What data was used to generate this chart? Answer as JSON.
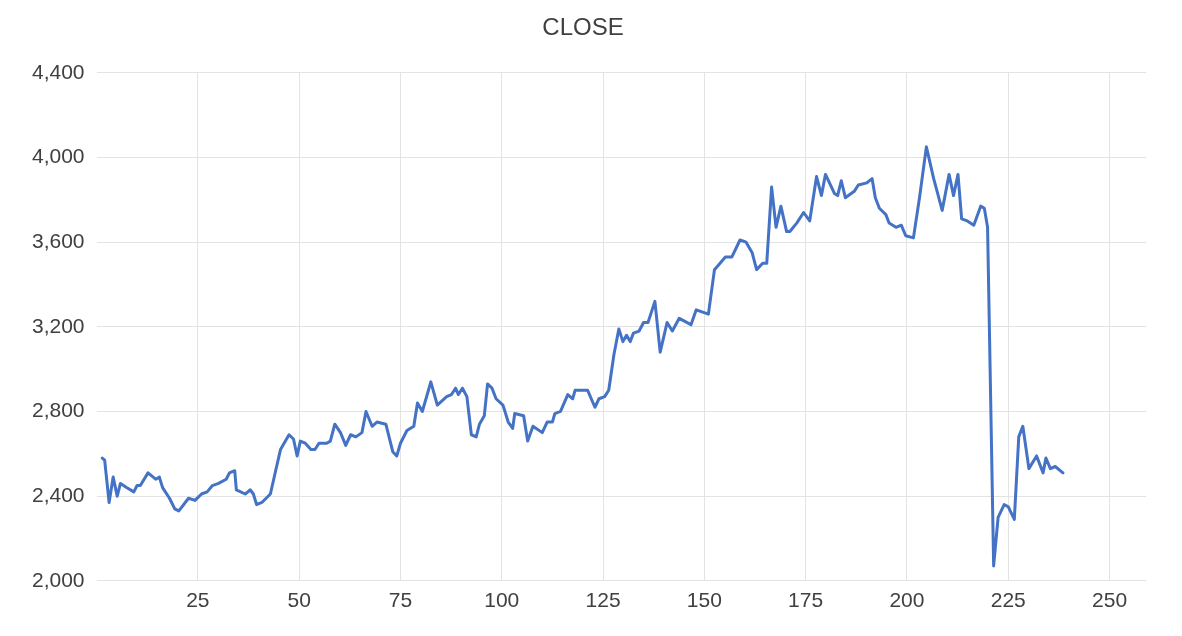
{
  "chart_data": {
    "type": "line",
    "title": "CLOSE",
    "series": [
      {
        "color": "#4472c4",
        "x": [
          1.4,
          2,
          3.1,
          4.1,
          5.1,
          5.9,
          7.5,
          9.2,
          10,
          10.8,
          12.7,
          14.6,
          15.5,
          16.3,
          18,
          19.3,
          20.3,
          22.7,
          24.3,
          25.9,
          27.3,
          28.6,
          30.1,
          32,
          32.8,
          34.1,
          34.5,
          36.7,
          37.9,
          38.7,
          39.5,
          40.8,
          42.9,
          44.2,
          45.4,
          47.5,
          48.6,
          49.5,
          50.3,
          51.5,
          52.9,
          53.9,
          54.9,
          56.8,
          57.7,
          58.8,
          60.2,
          61.5,
          62.7,
          64,
          65.5,
          66.5,
          68,
          69.2,
          71.4,
          73.1,
          74.1,
          75,
          76.6,
          78.3,
          79.2,
          80.4,
          82.5,
          84.1,
          86.4,
          87.6,
          88.6,
          89.3,
          90.3,
          91.4,
          92.5,
          93.7,
          94.5,
          95.7,
          96.5,
          97.6,
          98.6,
          100.3,
          101.6,
          102.7,
          103.2,
          105.4,
          106.4,
          107.7,
          110,
          111.2,
          112.5,
          113.1,
          114.5,
          116.3,
          117.5,
          118.1,
          121.2,
          123,
          124,
          125.4,
          126.4,
          127.7,
          128.9,
          129.9,
          130.8,
          131.7,
          132.5,
          133.9,
          135,
          136.1,
          137.8,
          139.1,
          140.8,
          142.1,
          143.8,
          146.7,
          148,
          151,
          152.5,
          153.4,
          155.2,
          156.8,
          158.8,
          160.3,
          161.8,
          162.9,
          164.4,
          165.4,
          166.6,
          167.7,
          168.9,
          170.3,
          171.1,
          172.8,
          174.5,
          176,
          177.7,
          178.9,
          179.9,
          182.1,
          182.9,
          183.8,
          184.8,
          187,
          188,
          190.1,
          191.4,
          192.2,
          193.2,
          194.8,
          195.6,
          197.3,
          198.6,
          199.7,
          201.6,
          203.1,
          204.8,
          206.6,
          208.7,
          210.4,
          211.5,
          212.6,
          213.5,
          214.9,
          216.5,
          218.2,
          219.1,
          219.9,
          221.4,
          222.5,
          224,
          225,
          226.5,
          227.6,
          228.6,
          230.1,
          232,
          233.6,
          234.3,
          235.4,
          236.6,
          238.5
        ],
        "values": [
          2580,
          2570,
          2370,
          2490,
          2400,
          2460,
          2440,
          2420,
          2450,
          2450,
          2510,
          2480,
          2490,
          2440,
          2390,
          2340,
          2330,
          2390,
          2380,
          2410,
          2420,
          2450,
          2460,
          2480,
          2510,
          2520,
          2430,
          2410,
          2430,
          2410,
          2360,
          2370,
          2410,
          2520,
          2620,
          2690,
          2670,
          2590,
          2660,
          2650,
          2620,
          2620,
          2650,
          2650,
          2660,
          2740,
          2700,
          2640,
          2690,
          2680,
          2700,
          2800,
          2730,
          2750,
          2740,
          2610,
          2590,
          2650,
          2710,
          2730,
          2840,
          2800,
          2940,
          2830,
          2870,
          2880,
          2910,
          2880,
          2910,
          2870,
          2690,
          2680,
          2740,
          2780,
          2930,
          2910,
          2860,
          2830,
          2750,
          2720,
          2790,
          2780,
          2660,
          2730,
          2700,
          2750,
          2750,
          2790,
          2800,
          2880,
          2860,
          2900,
          2900,
          2820,
          2860,
          2870,
          2900,
          3070,
          3190,
          3130,
          3160,
          3130,
          3170,
          3180,
          3220,
          3220,
          3320,
          3080,
          3220,
          3180,
          3240,
          3210,
          3280,
          3260,
          3470,
          3490,
          3530,
          3530,
          3610,
          3600,
          3550,
          3470,
          3500,
          3500,
          3860,
          3670,
          3770,
          3650,
          3650,
          3690,
          3740,
          3700,
          3910,
          3820,
          3920,
          3830,
          3820,
          3890,
          3810,
          3840,
          3870,
          3880,
          3900,
          3810,
          3760,
          3730,
          3690,
          3670,
          3680,
          3630,
          3620,
          3810,
          4050,
          3900,
          3750,
          3920,
          3820,
          3920,
          3710,
          3700,
          3680,
          3770,
          3760,
          3670,
          2070,
          2300,
          2360,
          2350,
          2290,
          2680,
          2730,
          2530,
          2590,
          2510,
          2580,
          2530,
          2540,
          2510
        ]
      }
    ],
    "xlim": [
      0,
      259
    ],
    "xticks": [
      25,
      50,
      75,
      100,
      125,
      150,
      175,
      200,
      225,
      250
    ],
    "ylim": [
      2000,
      4400
    ],
    "yticks": [
      {
        "value": 2000,
        "label": "2,000"
      },
      {
        "value": 2400,
        "label": "2,400"
      },
      {
        "value": 2800,
        "label": "2,800"
      },
      {
        "value": 3200,
        "label": "3,200"
      },
      {
        "value": 3600,
        "label": "3,600"
      },
      {
        "value": 4000,
        "label": "4,000"
      },
      {
        "value": 4400,
        "label": "4,400"
      }
    ],
    "grid": true,
    "marker": "none",
    "line_style": "solid",
    "legend": false
  }
}
